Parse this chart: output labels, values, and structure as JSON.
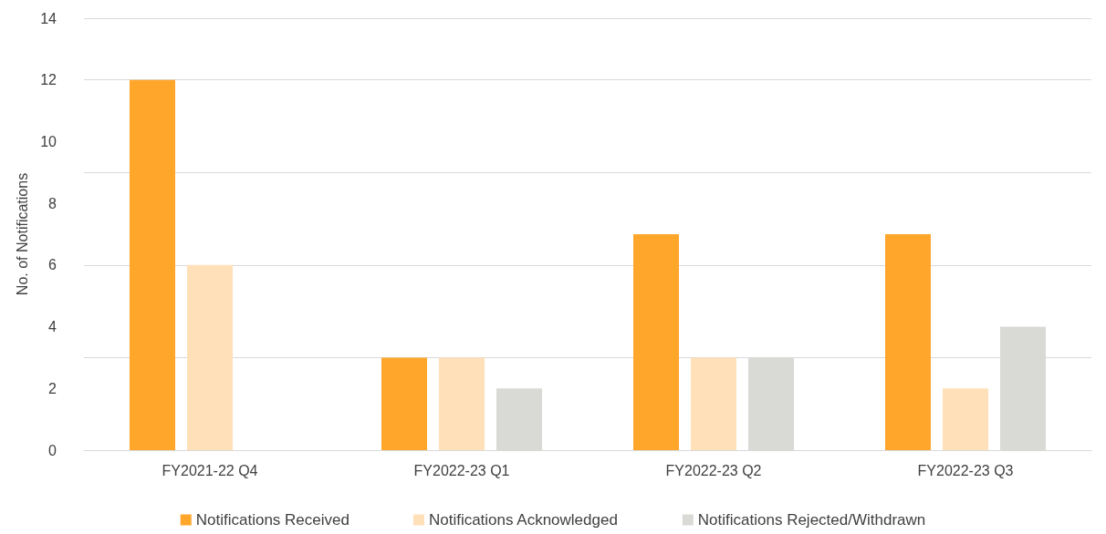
{
  "chart_data": {
    "type": "bar",
    "ylabel": "No. of Notifications",
    "categories": [
      "FY2021-22 Q4",
      "FY2022-23 Q1",
      "FY2022-23 Q2",
      "FY2022-23 Q3"
    ],
    "series": [
      {
        "name": "Notifications Received",
        "color": "#ffa62b",
        "values": [
          12,
          3,
          7,
          7
        ]
      },
      {
        "name": "Notifications Acknowledged",
        "color": "#ffe0b8",
        "values": [
          6,
          3,
          3,
          2
        ]
      },
      {
        "name": "Notifications Rejected/Withdrawn",
        "color": "#d9d9d6",
        "values": [
          0,
          2,
          3,
          4
        ]
      }
    ],
    "ylim": [
      0,
      14
    ],
    "yticks": [
      0,
      2,
      4,
      6,
      8,
      10,
      12,
      14
    ],
    "grid": "y",
    "legend": "bottom"
  }
}
